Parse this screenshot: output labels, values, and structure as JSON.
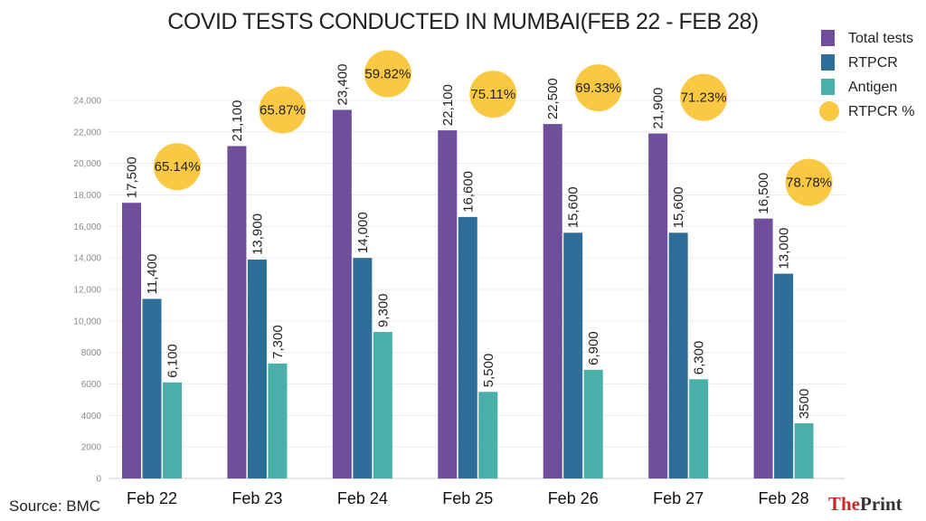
{
  "chart_data": {
    "type": "bar",
    "title": "COVID TESTS CONDUCTED IN MUMBAI(FEB 22 - FEB 28)",
    "categories": [
      "Feb 22",
      "Feb 23",
      "Feb 24",
      "Feb 25",
      "Feb 26",
      "Feb 27",
      "Feb 28"
    ],
    "series": [
      {
        "name": "Total tests",
        "color": "#6f4f9c",
        "values": [
          17500,
          21100,
          23400,
          22100,
          22500,
          21900,
          16500
        ],
        "labels": [
          "17,500",
          "21,100",
          "23,400",
          "22,100",
          "22,500",
          "21,900",
          "16,500"
        ]
      },
      {
        "name": "RTPCR",
        "color": "#2e6f9a",
        "values": [
          11400,
          13900,
          14000,
          16600,
          15600,
          15600,
          13000
        ],
        "labels": [
          "11,400",
          "13,900",
          "14,000",
          "16,600",
          "15,600",
          "15,600",
          "13,000"
        ]
      },
      {
        "name": "Antigen",
        "color": "#4aafa9",
        "values": [
          6100,
          7300,
          9300,
          5500,
          6900,
          6300,
          3500
        ],
        "labels": [
          "6,100",
          "7,300",
          "9,300",
          "5,500",
          "6,900",
          "6,300",
          "3500"
        ]
      }
    ],
    "rtpcr_percent": {
      "name": "RTPCR %",
      "color": "#fbc844",
      "values": [
        65.14,
        65.87,
        59.82,
        75.11,
        69.33,
        71.23,
        78.78
      ],
      "labels": [
        "65.14%",
        "65.87%",
        "59.82%",
        "75.11%",
        "69.33%",
        "71.23%",
        "78.78%"
      ]
    },
    "y_ticks": [
      0,
      2000,
      4000,
      6000,
      8000,
      10000,
      12000,
      14000,
      16000,
      18000,
      20000,
      22000,
      24000
    ],
    "y_tick_labels": [
      "0",
      "2000",
      "4000",
      "6000",
      "8000",
      "10,000",
      "12,000",
      "14,000",
      "16,000",
      "18,000",
      "20,000",
      "22,000",
      "24,000"
    ],
    "ylim": [
      0,
      24000
    ],
    "xlabel": "",
    "ylabel": "",
    "grid": true,
    "legend": "top-right"
  },
  "source": "Source: BMC",
  "brand": {
    "part1": "The",
    "part2": "Print"
  }
}
